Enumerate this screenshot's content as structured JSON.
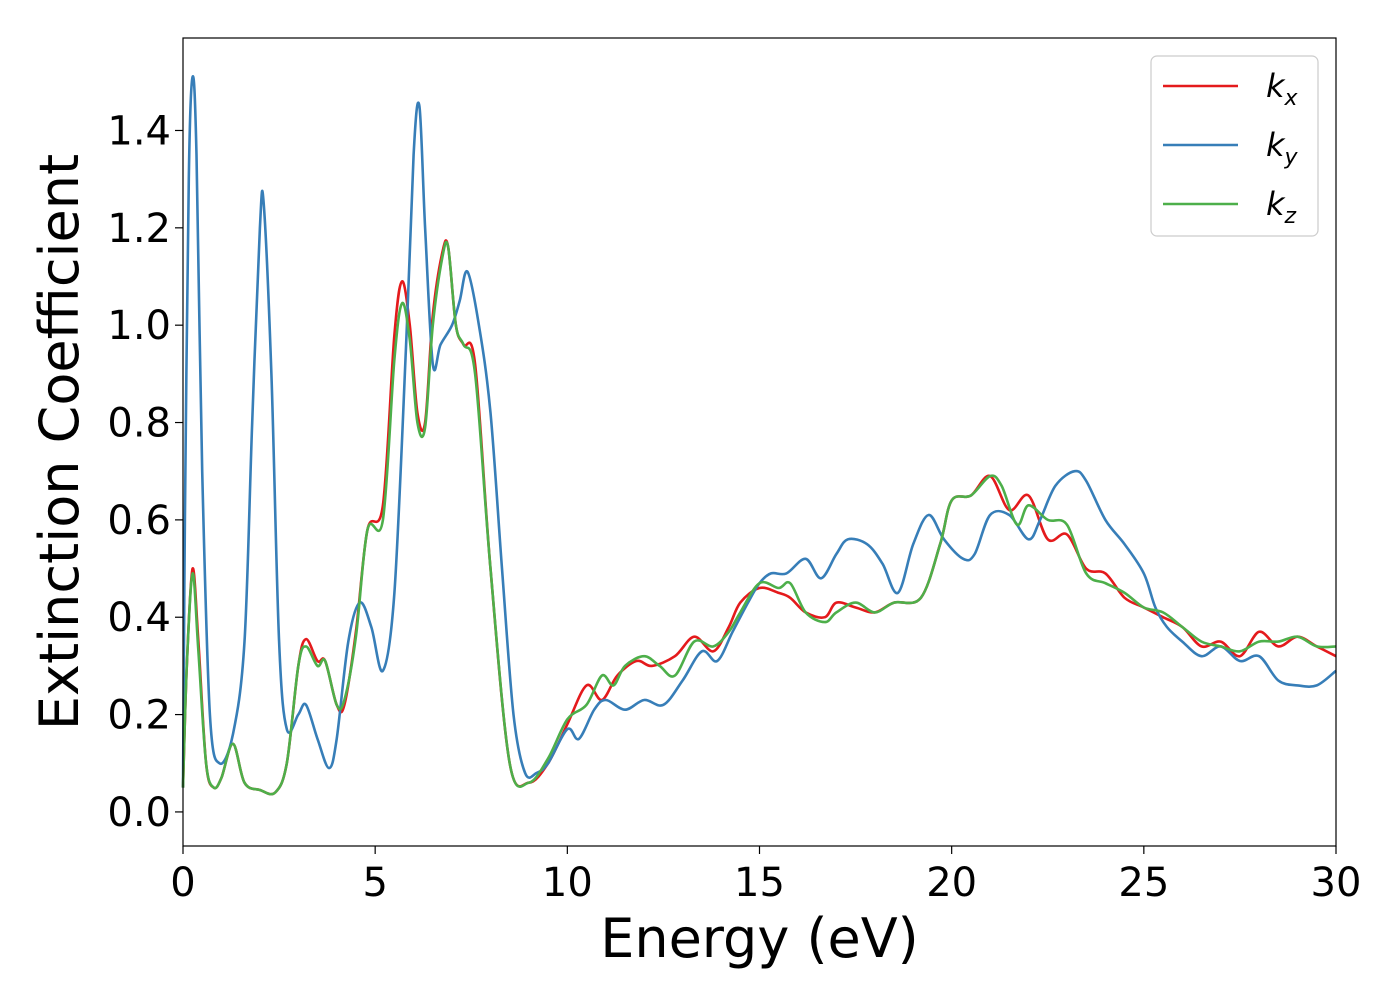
{
  "chart_data": {
    "type": "line",
    "title": "",
    "xlabel": "Energy (eV)",
    "ylabel": "Extinction Coefficient",
    "xlim": [
      0,
      30
    ],
    "ylim": [
      -0.07,
      1.59
    ],
    "xticks": [
      0,
      5,
      10,
      15,
      20,
      25,
      30
    ],
    "xtick_labels": [
      "0",
      "5",
      "10",
      "15",
      "20",
      "25",
      "30"
    ],
    "yticks": [
      0.0,
      0.2,
      0.4,
      0.6,
      0.8,
      1.0,
      1.2,
      1.4
    ],
    "ytick_labels": [
      "0.0",
      "0.2",
      "0.4",
      "0.6",
      "0.8",
      "1.0",
      "1.2",
      "1.4"
    ],
    "grid": false,
    "legend_position": "top-right",
    "series": [
      {
        "name": "k_x",
        "legend_main": "k",
        "legend_sub": "x",
        "color": "#e41a1c",
        "points": [
          [
            0,
            0.05
          ],
          [
            0.1,
            0.3
          ],
          [
            0.25,
            0.5
          ],
          [
            0.4,
            0.35
          ],
          [
            0.6,
            0.1
          ],
          [
            0.8,
            0.05
          ],
          [
            1.0,
            0.07
          ],
          [
            1.3,
            0.14
          ],
          [
            1.6,
            0.06
          ],
          [
            2.0,
            0.045
          ],
          [
            2.4,
            0.04
          ],
          [
            2.7,
            0.1
          ],
          [
            3.0,
            0.3
          ],
          [
            3.2,
            0.355
          ],
          [
            3.5,
            0.31
          ],
          [
            3.7,
            0.31
          ],
          [
            4.0,
            0.22
          ],
          [
            4.2,
            0.22
          ],
          [
            4.5,
            0.37
          ],
          [
            4.8,
            0.58
          ],
          [
            5.2,
            0.63
          ],
          [
            5.5,
            0.98
          ],
          [
            5.7,
            1.09
          ],
          [
            5.9,
            1.0
          ],
          [
            6.1,
            0.82
          ],
          [
            6.3,
            0.8
          ],
          [
            6.5,
            1.02
          ],
          [
            6.75,
            1.15
          ],
          [
            6.9,
            1.16
          ],
          [
            7.1,
            1.0
          ],
          [
            7.3,
            0.96
          ],
          [
            7.6,
            0.92
          ],
          [
            8.0,
            0.5
          ],
          [
            8.5,
            0.1
          ],
          [
            9.0,
            0.06
          ],
          [
            9.5,
            0.1
          ],
          [
            10.0,
            0.18
          ],
          [
            10.5,
            0.26
          ],
          [
            10.9,
            0.23
          ],
          [
            11.3,
            0.28
          ],
          [
            11.8,
            0.31
          ],
          [
            12.2,
            0.3
          ],
          [
            12.8,
            0.32
          ],
          [
            13.3,
            0.36
          ],
          [
            13.8,
            0.33
          ],
          [
            14.2,
            0.38
          ],
          [
            14.5,
            0.43
          ],
          [
            15.0,
            0.46
          ],
          [
            15.5,
            0.45
          ],
          [
            15.8,
            0.44
          ],
          [
            16.2,
            0.41
          ],
          [
            16.7,
            0.4
          ],
          [
            17.0,
            0.43
          ],
          [
            17.5,
            0.42
          ],
          [
            18.0,
            0.41
          ],
          [
            18.5,
            0.43
          ],
          [
            19.2,
            0.44
          ],
          [
            19.7,
            0.55
          ],
          [
            20.0,
            0.64
          ],
          [
            20.5,
            0.65
          ],
          [
            21.0,
            0.69
          ],
          [
            21.5,
            0.62
          ],
          [
            22.0,
            0.65
          ],
          [
            22.5,
            0.56
          ],
          [
            23.0,
            0.57
          ],
          [
            23.5,
            0.5
          ],
          [
            24.0,
            0.49
          ],
          [
            24.5,
            0.44
          ],
          [
            25.0,
            0.42
          ],
          [
            25.5,
            0.4
          ],
          [
            26.0,
            0.38
          ],
          [
            26.5,
            0.34
          ],
          [
            27.0,
            0.35
          ],
          [
            27.5,
            0.32
          ],
          [
            28.0,
            0.37
          ],
          [
            28.5,
            0.34
          ],
          [
            29.0,
            0.36
          ],
          [
            29.5,
            0.34
          ],
          [
            30.0,
            0.32
          ]
        ]
      },
      {
        "name": "k_y",
        "legend_main": "k",
        "legend_sub": "y",
        "color": "#377eb8",
        "points": [
          [
            0,
            0.05
          ],
          [
            0.05,
            0.6
          ],
          [
            0.15,
            1.3
          ],
          [
            0.25,
            1.51
          ],
          [
            0.35,
            1.35
          ],
          [
            0.5,
            0.7
          ],
          [
            0.7,
            0.2
          ],
          [
            0.95,
            0.1
          ],
          [
            1.3,
            0.16
          ],
          [
            1.6,
            0.35
          ],
          [
            1.8,
            0.8
          ],
          [
            2.0,
            1.2
          ],
          [
            2.1,
            1.25
          ],
          [
            2.3,
            0.9
          ],
          [
            2.5,
            0.35
          ],
          [
            2.7,
            0.17
          ],
          [
            3.0,
            0.2
          ],
          [
            3.2,
            0.22
          ],
          [
            3.5,
            0.15
          ],
          [
            3.8,
            0.09
          ],
          [
            4.0,
            0.15
          ],
          [
            4.3,
            0.35
          ],
          [
            4.6,
            0.43
          ],
          [
            4.9,
            0.38
          ],
          [
            5.2,
            0.29
          ],
          [
            5.5,
            0.45
          ],
          [
            5.8,
            0.95
          ],
          [
            6.0,
            1.35
          ],
          [
            6.15,
            1.45
          ],
          [
            6.3,
            1.2
          ],
          [
            6.5,
            0.92
          ],
          [
            6.7,
            0.96
          ],
          [
            7.0,
            1.0
          ],
          [
            7.2,
            1.05
          ],
          [
            7.4,
            1.11
          ],
          [
            7.7,
            1.0
          ],
          [
            8.0,
            0.82
          ],
          [
            8.3,
            0.5
          ],
          [
            8.6,
            0.2
          ],
          [
            8.9,
            0.08
          ],
          [
            9.2,
            0.08
          ],
          [
            9.5,
            0.1
          ],
          [
            10.0,
            0.17
          ],
          [
            10.3,
            0.15
          ],
          [
            10.7,
            0.21
          ],
          [
            11.0,
            0.23
          ],
          [
            11.5,
            0.21
          ],
          [
            12.0,
            0.23
          ],
          [
            12.5,
            0.22
          ],
          [
            13.0,
            0.27
          ],
          [
            13.5,
            0.33
          ],
          [
            13.9,
            0.31
          ],
          [
            14.3,
            0.37
          ],
          [
            14.7,
            0.43
          ],
          [
            15.0,
            0.47
          ],
          [
            15.3,
            0.49
          ],
          [
            15.7,
            0.49
          ],
          [
            16.2,
            0.52
          ],
          [
            16.6,
            0.48
          ],
          [
            17.0,
            0.53
          ],
          [
            17.3,
            0.56
          ],
          [
            17.8,
            0.55
          ],
          [
            18.2,
            0.51
          ],
          [
            18.6,
            0.45
          ],
          [
            19.0,
            0.55
          ],
          [
            19.4,
            0.61
          ],
          [
            19.8,
            0.56
          ],
          [
            20.3,
            0.52
          ],
          [
            20.6,
            0.53
          ],
          [
            21.0,
            0.61
          ],
          [
            21.5,
            0.61
          ],
          [
            22.0,
            0.56
          ],
          [
            22.3,
            0.6
          ],
          [
            22.7,
            0.67
          ],
          [
            23.2,
            0.7
          ],
          [
            23.5,
            0.68
          ],
          [
            24.0,
            0.6
          ],
          [
            24.5,
            0.55
          ],
          [
            25.0,
            0.49
          ],
          [
            25.3,
            0.42
          ],
          [
            25.6,
            0.38
          ],
          [
            26.0,
            0.35
          ],
          [
            26.5,
            0.32
          ],
          [
            27.0,
            0.34
          ],
          [
            27.5,
            0.31
          ],
          [
            28.0,
            0.32
          ],
          [
            28.5,
            0.27
          ],
          [
            29.0,
            0.26
          ],
          [
            29.5,
            0.26
          ],
          [
            30.0,
            0.29
          ]
        ]
      },
      {
        "name": "k_z",
        "legend_main": "k",
        "legend_sub": "z",
        "color": "#4daf4a",
        "points": [
          [
            0,
            0.05
          ],
          [
            0.1,
            0.3
          ],
          [
            0.25,
            0.49
          ],
          [
            0.4,
            0.33
          ],
          [
            0.6,
            0.1
          ],
          [
            0.8,
            0.05
          ],
          [
            1.0,
            0.07
          ],
          [
            1.3,
            0.14
          ],
          [
            1.6,
            0.06
          ],
          [
            2.0,
            0.045
          ],
          [
            2.4,
            0.04
          ],
          [
            2.7,
            0.1
          ],
          [
            3.0,
            0.3
          ],
          [
            3.2,
            0.34
          ],
          [
            3.5,
            0.3
          ],
          [
            3.7,
            0.31
          ],
          [
            4.0,
            0.22
          ],
          [
            4.2,
            0.23
          ],
          [
            4.5,
            0.36
          ],
          [
            4.8,
            0.58
          ],
          [
            5.2,
            0.6
          ],
          [
            5.5,
            0.93
          ],
          [
            5.7,
            1.045
          ],
          [
            5.9,
            0.97
          ],
          [
            6.1,
            0.8
          ],
          [
            6.3,
            0.79
          ],
          [
            6.5,
            1.0
          ],
          [
            6.75,
            1.14
          ],
          [
            6.9,
            1.16
          ],
          [
            7.1,
            1.0
          ],
          [
            7.3,
            0.96
          ],
          [
            7.6,
            0.9
          ],
          [
            8.0,
            0.5
          ],
          [
            8.5,
            0.1
          ],
          [
            9.0,
            0.06
          ],
          [
            9.5,
            0.11
          ],
          [
            10.0,
            0.19
          ],
          [
            10.5,
            0.22
          ],
          [
            10.9,
            0.28
          ],
          [
            11.2,
            0.26
          ],
          [
            11.5,
            0.3
          ],
          [
            12.0,
            0.32
          ],
          [
            12.4,
            0.3
          ],
          [
            12.8,
            0.28
          ],
          [
            13.3,
            0.35
          ],
          [
            13.8,
            0.34
          ],
          [
            14.2,
            0.37
          ],
          [
            14.5,
            0.41
          ],
          [
            15.0,
            0.47
          ],
          [
            15.5,
            0.46
          ],
          [
            15.8,
            0.47
          ],
          [
            16.2,
            0.41
          ],
          [
            16.7,
            0.39
          ],
          [
            17.0,
            0.41
          ],
          [
            17.5,
            0.43
          ],
          [
            18.0,
            0.41
          ],
          [
            18.5,
            0.43
          ],
          [
            19.2,
            0.44
          ],
          [
            19.7,
            0.55
          ],
          [
            20.0,
            0.64
          ],
          [
            20.5,
            0.65
          ],
          [
            21.0,
            0.69
          ],
          [
            21.3,
            0.67
          ],
          [
            21.7,
            0.59
          ],
          [
            22.0,
            0.63
          ],
          [
            22.5,
            0.6
          ],
          [
            23.0,
            0.59
          ],
          [
            23.5,
            0.49
          ],
          [
            24.0,
            0.47
          ],
          [
            24.5,
            0.45
          ],
          [
            25.0,
            0.42
          ],
          [
            25.5,
            0.41
          ],
          [
            26.0,
            0.38
          ],
          [
            26.5,
            0.35
          ],
          [
            27.0,
            0.34
          ],
          [
            27.5,
            0.33
          ],
          [
            28.0,
            0.35
          ],
          [
            28.5,
            0.35
          ],
          [
            29.0,
            0.36
          ],
          [
            29.5,
            0.34
          ],
          [
            30.0,
            0.34
          ]
        ]
      }
    ]
  }
}
